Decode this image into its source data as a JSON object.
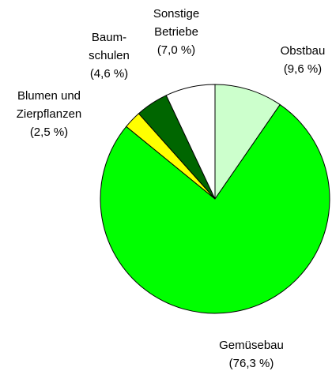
{
  "chart_data": {
    "type": "pie",
    "categories": [
      "Obstbau",
      "Gemüsebau",
      "Blumen und\nZierpflanzen",
      "Baum-\nschulen",
      "Sonstige\nBetriebe"
    ],
    "values": [
      9.6,
      76.3,
      2.5,
      4.6,
      7.0
    ],
    "value_labels": [
      "(9,6 %)",
      "(76,3 %)",
      "(2,5 %)",
      "(4,6 %)",
      "(7,0 %)"
    ],
    "colors": [
      "#ccffcc",
      "#00ff00",
      "#ffff00",
      "#006600",
      "#ffffff"
    ]
  }
}
